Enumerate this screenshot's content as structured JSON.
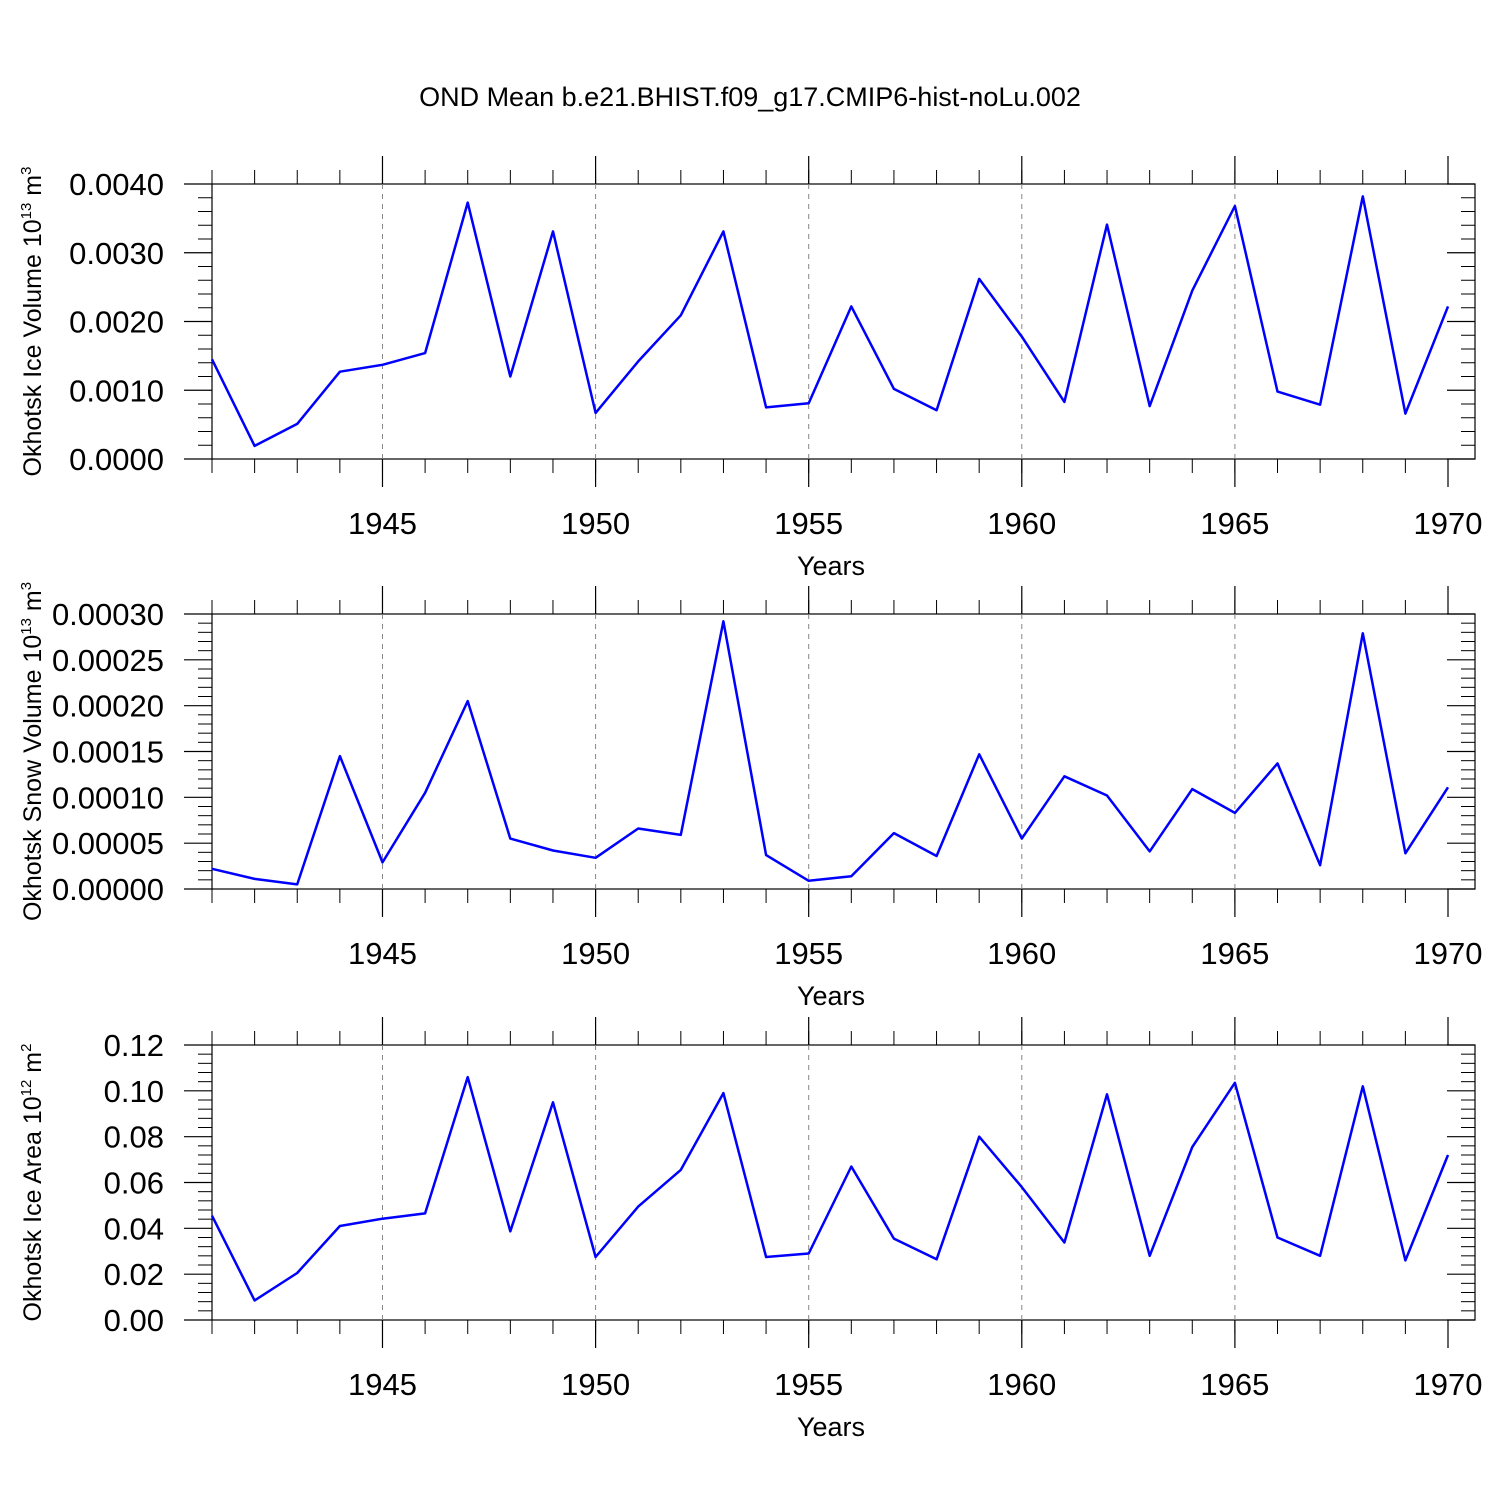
{
  "figure_title": "OND Mean b.e21.BHIST.f09_g17.CMIP6-hist-noLu.002",
  "line_color": "#0000ff",
  "grid_color": "#888888",
  "chart_data": [
    {
      "type": "line",
      "title": "",
      "xlabel": "Years",
      "ylabel_main": "Okhotsk Ice Volume 10",
      "ylabel_exp": "13",
      "ylabel_unit": " m",
      "ylabel_unit_exp": "3",
      "xlim": [
        1941,
        1970
      ],
      "ylim": [
        0,
        0.004
      ],
      "x_ticks": [
        "1945",
        "1950",
        "1955",
        "1960",
        "1965",
        "1970"
      ],
      "y_ticks": [
        "0.0000",
        "0.0010",
        "0.0020",
        "0.0030",
        "0.0040"
      ],
      "x": [
        1941,
        1942,
        1943,
        1944,
        1945,
        1946,
        1947,
        1948,
        1949,
        1950,
        1951,
        1952,
        1953,
        1954,
        1955,
        1956,
        1957,
        1958,
        1959,
        1960,
        1961,
        1962,
        1963,
        1964,
        1965,
        1966,
        1967,
        1968,
        1969,
        1970
      ],
      "values": [
        0.00145,
        0.00019,
        0.00051,
        0.00127,
        0.00137,
        0.00154,
        0.00373,
        0.0012,
        0.00331,
        0.00067,
        0.00142,
        0.00209,
        0.00331,
        0.00075,
        0.00081,
        0.00222,
        0.00102,
        0.00071,
        0.00262,
        0.00178,
        0.00083,
        0.00341,
        0.00077,
        0.00245,
        0.00368,
        0.00098,
        0.00079,
        0.00382,
        0.00066,
        0.00222
      ]
    },
    {
      "type": "line",
      "title": "",
      "xlabel": "Years",
      "ylabel_main": "Okhotsk Snow Volume 10",
      "ylabel_exp": "13",
      "ylabel_unit": " m",
      "ylabel_unit_exp": "3",
      "xlim": [
        1941,
        1970
      ],
      "ylim": [
        0,
        0.0003
      ],
      "x_ticks": [
        "1945",
        "1950",
        "1955",
        "1960",
        "1965",
        "1970"
      ],
      "y_ticks": [
        "0.00000",
        "0.00005",
        "0.00010",
        "0.00015",
        "0.00020",
        "0.00025",
        "0.00030"
      ],
      "x": [
        1941,
        1942,
        1943,
        1944,
        1945,
        1946,
        1947,
        1948,
        1949,
        1950,
        1951,
        1952,
        1953,
        1954,
        1955,
        1956,
        1957,
        1958,
        1959,
        1960,
        1961,
        1962,
        1963,
        1964,
        1965,
        1966,
        1967,
        1968,
        1969,
        1970
      ],
      "values": [
        2.2e-05,
        1.1e-05,
        5e-06,
        0.000145,
        2.9e-05,
        0.000105,
        0.000205,
        5.5e-05,
        4.2e-05,
        3.4e-05,
        6.6e-05,
        5.9e-05,
        0.000292,
        3.7e-05,
        9e-06,
        1.4e-05,
        6.1e-05,
        3.6e-05,
        0.000147,
        5.5e-05,
        0.000123,
        0.000102,
        4.1e-05,
        0.000109,
        8.3e-05,
        0.000137,
        2.6e-05,
        0.000279,
        3.9e-05,
        0.000111
      ]
    },
    {
      "type": "line",
      "title": "",
      "xlabel": "Years",
      "ylabel_main": "Okhotsk Ice Area 10",
      "ylabel_exp": "12",
      "ylabel_unit": " m",
      "ylabel_unit_exp": "2",
      "xlim": [
        1941,
        1970
      ],
      "ylim": [
        0,
        0.12
      ],
      "x_ticks": [
        "1945",
        "1950",
        "1955",
        "1960",
        "1965",
        "1970"
      ],
      "y_ticks": [
        "0.00",
        "0.02",
        "0.04",
        "0.06",
        "0.08",
        "0.10",
        "0.12"
      ],
      "x": [
        1941,
        1942,
        1943,
        1944,
        1945,
        1946,
        1947,
        1948,
        1949,
        1950,
        1951,
        1952,
        1953,
        1954,
        1955,
        1956,
        1957,
        1958,
        1959,
        1960,
        1961,
        1962,
        1963,
        1964,
        1965,
        1966,
        1967,
        1968,
        1969,
        1970
      ],
      "values": [
        0.0455,
        0.0085,
        0.0205,
        0.041,
        0.0442,
        0.0465,
        0.106,
        0.0387,
        0.095,
        0.0275,
        0.0495,
        0.0655,
        0.099,
        0.0275,
        0.029,
        0.067,
        0.0355,
        0.0265,
        0.08,
        0.058,
        0.0338,
        0.0985,
        0.028,
        0.0755,
        0.1035,
        0.036,
        0.028,
        0.102,
        0.026,
        0.072
      ]
    }
  ]
}
